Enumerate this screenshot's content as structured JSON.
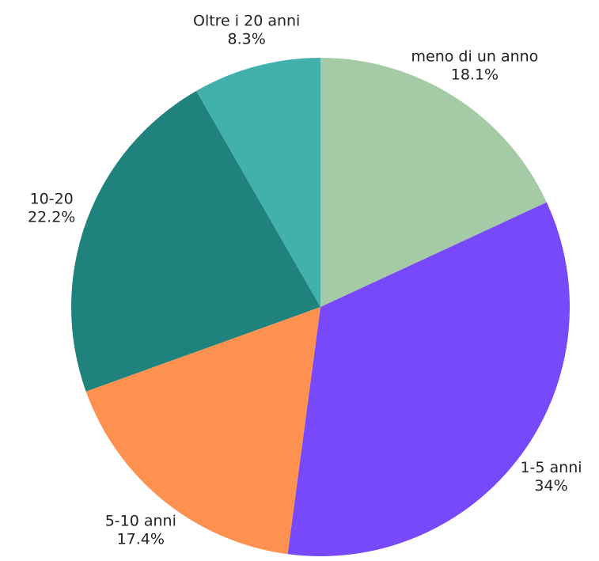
{
  "chart_data": {
    "type": "pie",
    "categories": [
      "meno di un anno",
      "1-5 anni",
      "5-10 anni",
      "10-20",
      "Oltre i 20 anni"
    ],
    "values": [
      18.1,
      34,
      17.4,
      22.2,
      8.3
    ],
    "value_labels": [
      "18.1%",
      "34%",
      "17.4%",
      "22.2%",
      "8.3%"
    ],
    "colors": [
      "#a5cba6",
      "#7849fa",
      "#ff9150",
      "#20827c",
      "#42b0ad"
    ]
  }
}
